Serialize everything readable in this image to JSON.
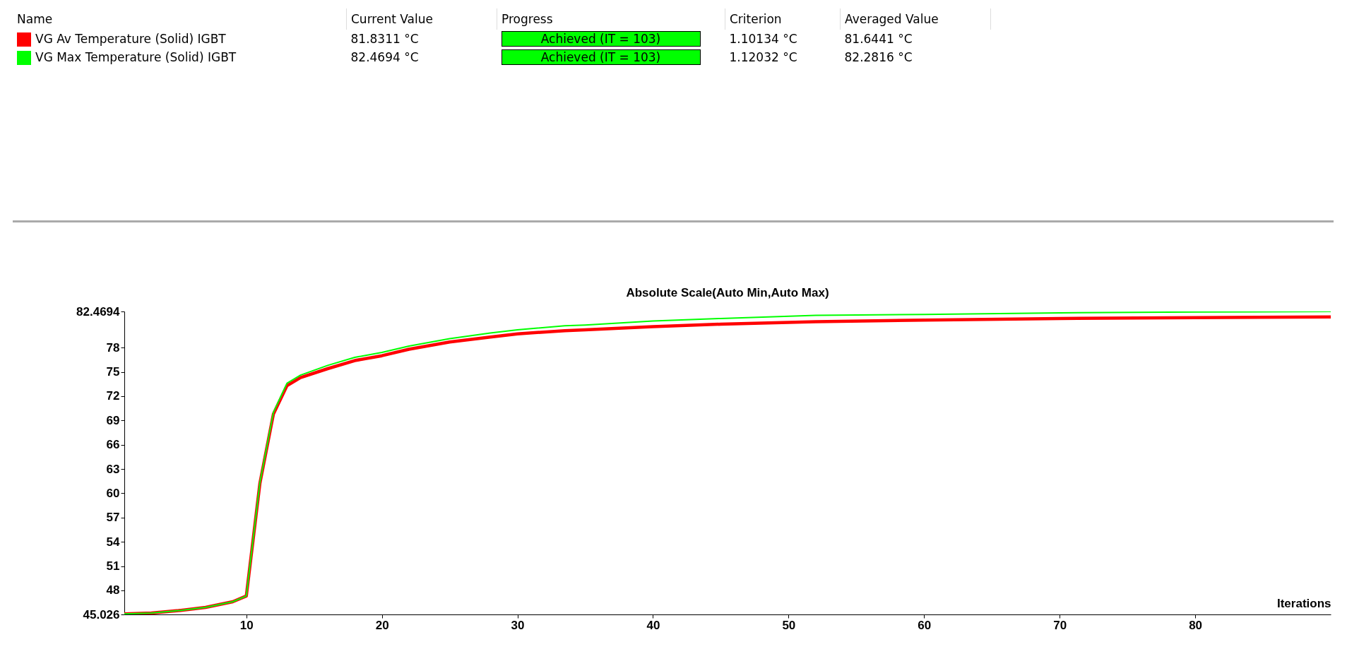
{
  "chart_data": {
    "type": "line",
    "title": "Absolute Scale(Auto Min,Auto Max)",
    "xlabel": "Iterations",
    "x": [
      1,
      3,
      5,
      7,
      9,
      10,
      11,
      12,
      13,
      14,
      16,
      18,
      20,
      22,
      25,
      28,
      30,
      33.5,
      35,
      40,
      45,
      52,
      60,
      70,
      80,
      90
    ],
    "series": [
      {
        "name": "VG Av Temperature (Solid) IGBT",
        "color": "#ff0000",
        "values": [
          45.1,
          45.2,
          45.5,
          45.9,
          46.6,
          47.3,
          61.2,
          69.8,
          73.3,
          74.3,
          75.4,
          76.4,
          77.0,
          77.8,
          78.7,
          79.3,
          79.7,
          80.1,
          80.2,
          80.6,
          80.9,
          81.2,
          81.4,
          81.6,
          81.7,
          81.8
        ]
      },
      {
        "name": "VG Max Temperature (Solid) IGBT",
        "color": "#00ff00",
        "values": [
          45.1,
          45.2,
          45.5,
          45.9,
          46.6,
          47.3,
          61.3,
          70.0,
          73.6,
          74.6,
          75.8,
          76.8,
          77.4,
          78.2,
          79.1,
          79.8,
          80.2,
          80.7,
          80.8,
          81.3,
          81.6,
          82.0,
          82.1,
          82.3,
          82.4,
          82.4694
        ]
      }
    ],
    "xlim": [
      1,
      90
    ],
    "xticks": [
      10,
      20,
      30,
      40,
      50,
      60,
      70,
      80
    ],
    "ylim": [
      45.026,
      82.4694
    ],
    "yticks": [
      45.026,
      48,
      51,
      54,
      57,
      60,
      63,
      66,
      69,
      72,
      75,
      78,
      82.4694
    ],
    "grid": false,
    "legend": "top",
    "annotations": [
      "Name",
      "Current Value",
      "Progress",
      "Criterion",
      "Averaged Value",
      "81.8311 °C",
      "Achieved (IT = 103)",
      "1.10134 °C",
      "81.6441 °C",
      "82.4694 °C",
      "Achieved (IT = 103)",
      "1.12032 °C",
      "82.2816 °C"
    ]
  }
}
